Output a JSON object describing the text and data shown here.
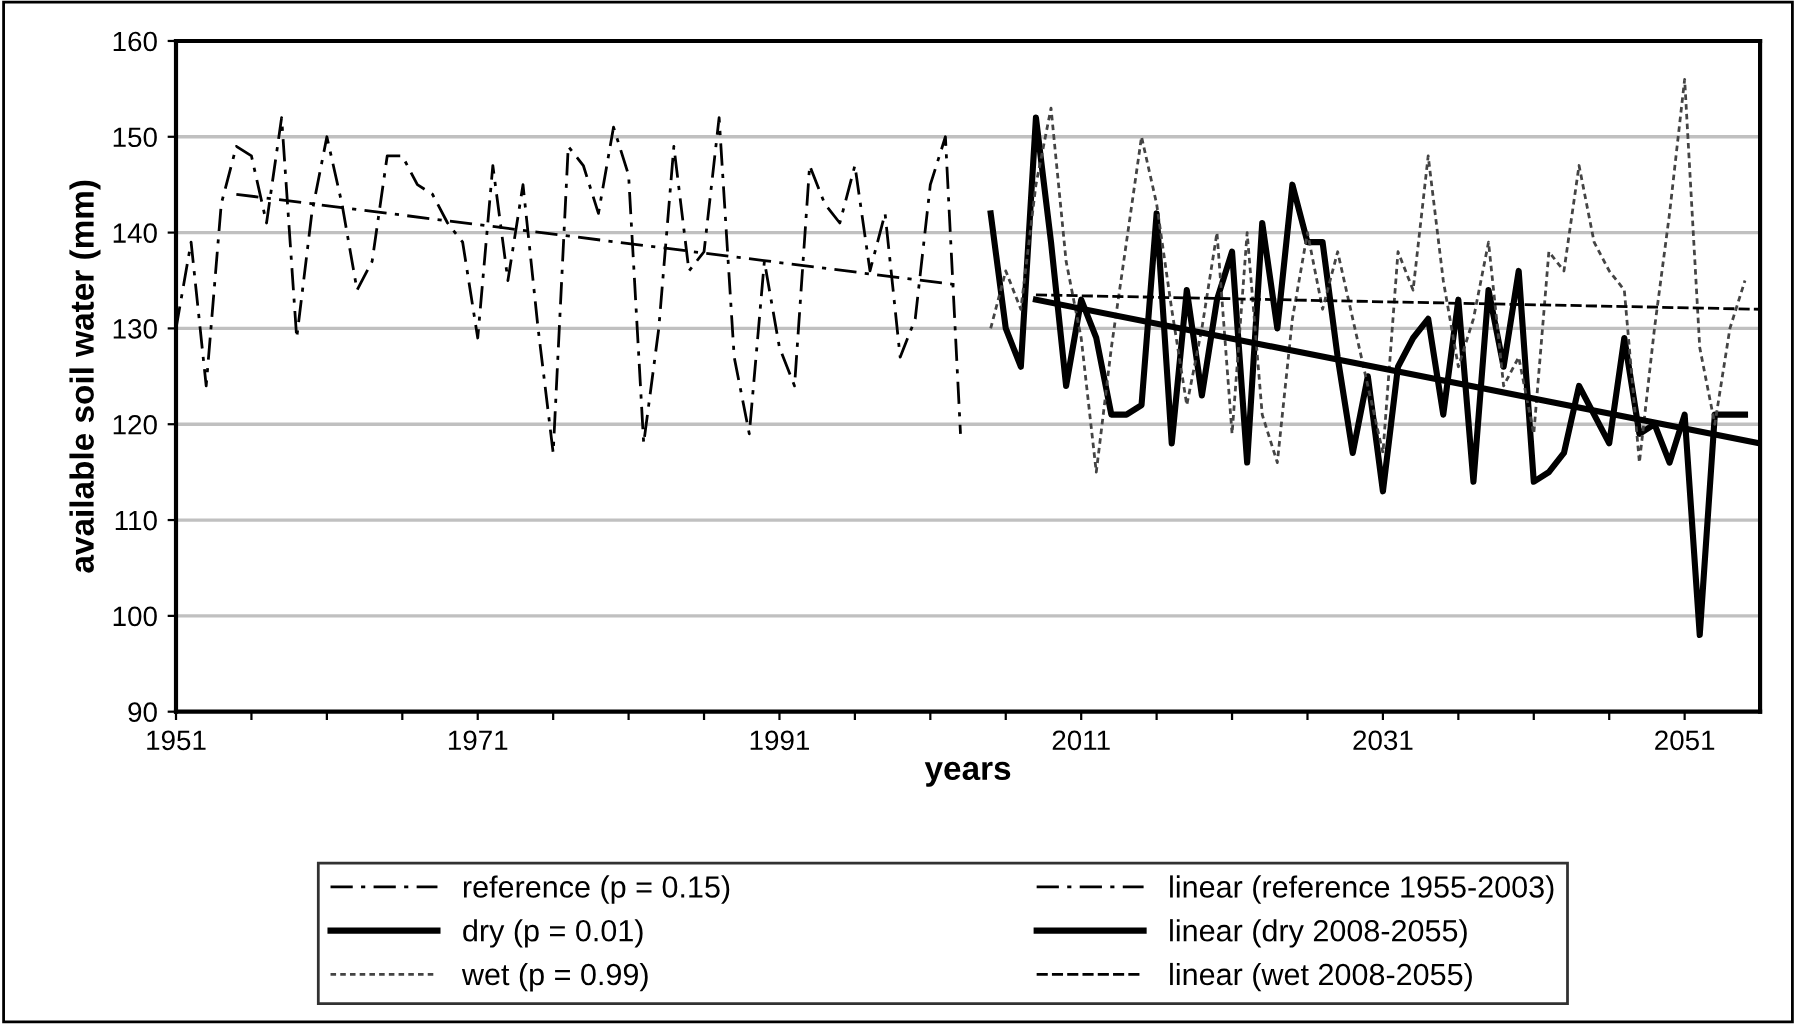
{
  "chart_data": {
    "type": "line",
    "xlabel": "years",
    "ylabel": "available soil water (mm)",
    "xlim": [
      1951,
      2056
    ],
    "ylim": [
      90,
      160
    ],
    "xticks": [
      1951,
      {
        "value": 1956,
        "label": null
      },
      {
        "value": 1961,
        "label": null
      },
      {
        "value": 1966,
        "label": null
      },
      1971,
      {
        "value": 1976,
        "label": null
      },
      {
        "value": 1981,
        "label": null
      },
      {
        "value": 1986,
        "label": null
      },
      1991,
      {
        "value": 1996,
        "label": null
      },
      {
        "value": 2001,
        "label": null
      },
      {
        "value": 2006,
        "label": null
      },
      2011,
      {
        "value": 2016,
        "label": null
      },
      {
        "value": 2021,
        "label": null
      },
      {
        "value": 2026,
        "label": null
      },
      2031,
      {
        "value": 2036,
        "label": null
      },
      {
        "value": 2041,
        "label": null
      },
      {
        "value": 2046,
        "label": null
      },
      2051
    ],
    "yticks": [
      90,
      100,
      110,
      120,
      130,
      140,
      150,
      160
    ],
    "grid": "y",
    "legend": "bottom",
    "marker": "none",
    "series": [
      {
        "name": "reference (p = 0.15)",
        "color": "#000000",
        "line_style": "dashdot",
        "x": [
          1951,
          1952,
          1953,
          1954,
          1955,
          1956,
          1957,
          1958,
          1959,
          1960,
          1961,
          1962,
          1963,
          1964,
          1965,
          1966,
          1967,
          1968,
          1969,
          1970,
          1971,
          1972,
          1973,
          1974,
          1975,
          1976,
          1977,
          1978,
          1979,
          1980,
          1981,
          1982,
          1983,
          1984,
          1985,
          1986,
          1987,
          1988,
          1989,
          1990,
          1991,
          1992,
          1993,
          1994,
          1995,
          1996,
          1997,
          1998,
          1999,
          2000,
          2001,
          2002,
          2003
        ],
        "values": [
          130,
          139,
          124,
          143,
          149,
          148,
          141,
          152,
          129,
          142,
          150,
          143,
          134,
          137,
          148,
          148,
          145,
          144,
          141,
          139,
          129,
          147,
          135,
          145,
          130,
          117,
          149,
          147,
          142,
          151,
          146,
          118,
          130,
          149,
          136,
          138,
          152,
          127,
          119,
          137,
          128,
          124,
          147,
          143,
          141,
          147,
          136,
          142,
          127,
          131,
          145,
          150,
          119
        ]
      },
      {
        "name": "dry (p = 0.01)",
        "color": "#000000",
        "line_style": "solid",
        "x": [
          2005,
          2006,
          2007,
          2008,
          2009,
          2010,
          2011,
          2012,
          2013,
          2014,
          2015,
          2016,
          2017,
          2018,
          2019,
          2020,
          2021,
          2022,
          2023,
          2024,
          2025,
          2026,
          2027,
          2028,
          2029,
          2030,
          2031,
          2032,
          2033,
          2034,
          2035,
          2036,
          2037,
          2038,
          2039,
          2040,
          2041,
          2042,
          2043,
          2044,
          2045,
          2046,
          2047,
          2048,
          2049,
          2050,
          2051,
          2052,
          2053,
          2054,
          2055
        ],
        "values": [
          142,
          130,
          126,
          152,
          139,
          124,
          133,
          129,
          121,
          121,
          122,
          142,
          118,
          134,
          123,
          133,
          138,
          116,
          141,
          130,
          145,
          139,
          139,
          127,
          117,
          125,
          113,
          126,
          129,
          131,
          121,
          133,
          114,
          134,
          126,
          136,
          114,
          115,
          117,
          124,
          121,
          118,
          129,
          119,
          120,
          116,
          121,
          98,
          121,
          121,
          121
        ]
      },
      {
        "name": "wet (p = 0.99)",
        "color": "#444444",
        "line_style": "dotted",
        "x": [
          2005,
          2006,
          2007,
          2008,
          2009,
          2010,
          2011,
          2012,
          2013,
          2014,
          2015,
          2016,
          2017,
          2018,
          2019,
          2020,
          2021,
          2022,
          2023,
          2024,
          2025,
          2026,
          2027,
          2028,
          2029,
          2030,
          2031,
          2032,
          2033,
          2034,
          2035,
          2036,
          2037,
          2038,
          2039,
          2040,
          2041,
          2042,
          2043,
          2044,
          2045,
          2046,
          2047,
          2048,
          2049,
          2050,
          2051,
          2052,
          2053,
          2054,
          2055
        ],
        "values": [
          130,
          136,
          132,
          145,
          153,
          137,
          129,
          115,
          128,
          139,
          150,
          143,
          132,
          122,
          130,
          140,
          119,
          140,
          121,
          116,
          131,
          140,
          132,
          138,
          131,
          124,
          117,
          138,
          134,
          148,
          135,
          126,
          131,
          139,
          124,
          127,
          119,
          138,
          136,
          147,
          139,
          136,
          134,
          116,
          130,
          142,
          156,
          128,
          120,
          130,
          135
        ]
      },
      {
        "name": "linear (reference 1955-2003)",
        "color": "#000000",
        "line_style": "dashdot",
        "x": [
          1955,
          2003
        ],
        "values": [
          144,
          134.5
        ]
      },
      {
        "name": "linear (dry 2008-2055)",
        "color": "#000000",
        "line_style": "solid",
        "x": [
          2008,
          2056
        ],
        "values": [
          133,
          118
        ]
      },
      {
        "name": "linear (wet 2008-2055)",
        "color": "#000000",
        "line_style": "dashed",
        "x": [
          2008,
          2056
        ],
        "values": [
          133.5,
          132
        ]
      }
    ]
  }
}
